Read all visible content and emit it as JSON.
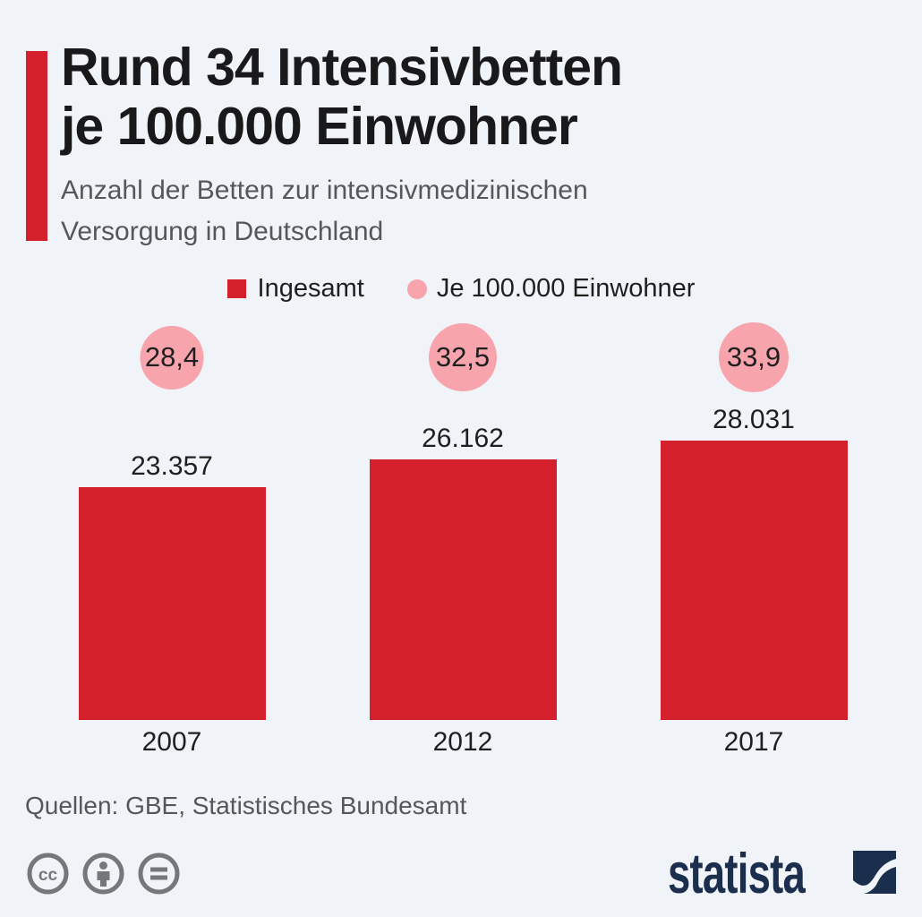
{
  "header": {
    "title_line1": "Rund 34 Intensivbetten",
    "title_line2": "je 100.000 Einwohner",
    "subtitle_line1": "Anzahl der Betten zur intensivmedizinischen",
    "subtitle_line2": "Versorgung in Deutschland"
  },
  "legend": {
    "total_label": "Ingesamt",
    "per_capita_label": "Je 100.000 Einwohner"
  },
  "chart_data": {
    "type": "bar",
    "title": "Rund 34 Intensivbetten je 100.000 Einwohner",
    "subtitle": "Anzahl der Betten zur intensivmedizinischen Versorgung in Deutschland",
    "categories": [
      "2007",
      "2012",
      "2017"
    ],
    "series": [
      {
        "name": "Ingesamt",
        "values": [
          23357,
          26162,
          28031
        ],
        "display": [
          "23.357",
          "26.162",
          "28.031"
        ],
        "color": "#d3202b",
        "mark": "bar"
      },
      {
        "name": "Je 100.000 Einwohner",
        "values": [
          28.4,
          32.5,
          33.9
        ],
        "display": [
          "28,4",
          "32,5",
          "33,9"
        ],
        "color": "#f7a4ad",
        "mark": "bubble"
      }
    ],
    "xlabel": "",
    "ylabel": "",
    "grid": false,
    "legend_position": "top",
    "value_labels": "outside-top"
  },
  "footer": {
    "source": "Quellen: GBE, Statistisches Bundesamt",
    "license_icons": [
      "cc-icon",
      "attribution-person-icon",
      "equals-icon"
    ],
    "brand": "statista"
  },
  "colors": {
    "background": "#f0f3f7",
    "accent_red": "#d3202b",
    "bubble_pink": "#f7a4ad",
    "title_text": "#19191b",
    "muted_text": "#54575b",
    "icon_gray": "#767779",
    "brand_navy": "#1b2e4d"
  }
}
